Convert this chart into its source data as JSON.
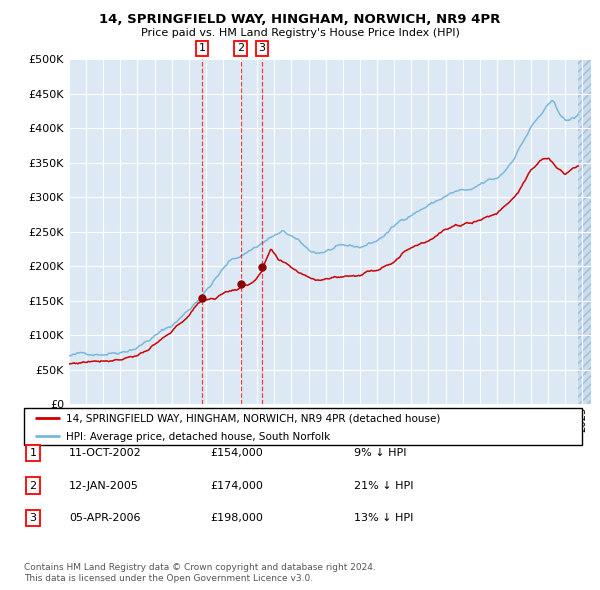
{
  "title": "14, SPRINGFIELD WAY, HINGHAM, NORWICH, NR9 4PR",
  "subtitle": "Price paid vs. HM Land Registry's House Price Index (HPI)",
  "legend_line1": "14, SPRINGFIELD WAY, HINGHAM, NORWICH, NR9 4PR (detached house)",
  "legend_line2": "HPI: Average price, detached house, South Norfolk",
  "footer1": "Contains HM Land Registry data © Crown copyright and database right 2024.",
  "footer2": "This data is licensed under the Open Government Licence v3.0.",
  "transactions": [
    {
      "num": 1,
      "date": "11-OCT-2002",
      "price": 154000,
      "hpi_diff": "9% ↓ HPI",
      "date_decimal": 2002.78
    },
    {
      "num": 2,
      "date": "12-JAN-2005",
      "price": 174000,
      "hpi_diff": "21% ↓ HPI",
      "date_decimal": 2005.03
    },
    {
      "num": 3,
      "date": "05-APR-2006",
      "price": 198000,
      "hpi_diff": "13% ↓ HPI",
      "date_decimal": 2006.27
    }
  ],
  "hpi_color": "#7ab8d9",
  "price_color": "#cc0000",
  "background_color": "#dce9f5",
  "hatch_color": "#b8d0e8",
  "ylim": [
    0,
    500000
  ],
  "yticks": [
    0,
    50000,
    100000,
    150000,
    200000,
    250000,
    300000,
    350000,
    400000,
    450000,
    500000
  ],
  "xlim_start": 1995.0,
  "xlim_end": 2025.5,
  "hpi_anchors_t": [
    1995.0,
    1996.0,
    1997.0,
    1998.0,
    1999.0,
    2000.0,
    2001.0,
    2002.0,
    2003.0,
    2004.0,
    2004.5,
    2005.0,
    2005.5,
    2006.0,
    2006.5,
    2007.0,
    2007.5,
    2008.0,
    2008.5,
    2009.0,
    2009.5,
    2010.0,
    2010.5,
    2011.0,
    2012.0,
    2013.0,
    2014.0,
    2015.0,
    2016.0,
    2016.5,
    2017.0,
    2017.5,
    2018.0,
    2018.5,
    2019.0,
    2019.5,
    2020.0,
    2020.5,
    2021.0,
    2021.5,
    2022.0,
    2022.5,
    2023.0,
    2023.3,
    2023.7,
    2024.0,
    2024.5,
    2024.75
  ],
  "hpi_anchors_v": [
    70000,
    72000,
    76000,
    82000,
    92000,
    108000,
    122000,
    145000,
    175000,
    205000,
    218000,
    224000,
    232000,
    240000,
    248000,
    255000,
    258000,
    252000,
    240000,
    228000,
    225000,
    228000,
    232000,
    230000,
    228000,
    238000,
    258000,
    278000,
    292000,
    298000,
    305000,
    310000,
    312000,
    308000,
    315000,
    320000,
    322000,
    335000,
    355000,
    378000,
    400000,
    415000,
    428000,
    432000,
    415000,
    405000,
    408000,
    412000
  ],
  "price_anchors_t": [
    1995.0,
    1996.0,
    1997.0,
    1998.0,
    1999.0,
    2000.0,
    2001.0,
    2002.0,
    2002.78,
    2003.5,
    2004.0,
    2004.5,
    2005.03,
    2005.5,
    2006.0,
    2006.27,
    2006.8,
    2007.2,
    2007.8,
    2008.5,
    2009.0,
    2009.5,
    2010.0,
    2011.0,
    2012.0,
    2013.0,
    2014.0,
    2015.0,
    2016.0,
    2017.0,
    2018.0,
    2019.0,
    2020.0,
    2021.0,
    2022.0,
    2022.5,
    2023.0,
    2023.5,
    2024.0,
    2024.5,
    2024.75
  ],
  "price_anchors_v": [
    58000,
    62000,
    67000,
    72000,
    80000,
    92000,
    108000,
    132000,
    154000,
    158000,
    165000,
    170000,
    174000,
    178000,
    190000,
    198000,
    228000,
    210000,
    198000,
    188000,
    183000,
    180000,
    185000,
    188000,
    192000,
    200000,
    218000,
    238000,
    252000,
    268000,
    272000,
    282000,
    292000,
    318000,
    355000,
    368000,
    372000,
    358000,
    348000,
    355000,
    358000
  ]
}
